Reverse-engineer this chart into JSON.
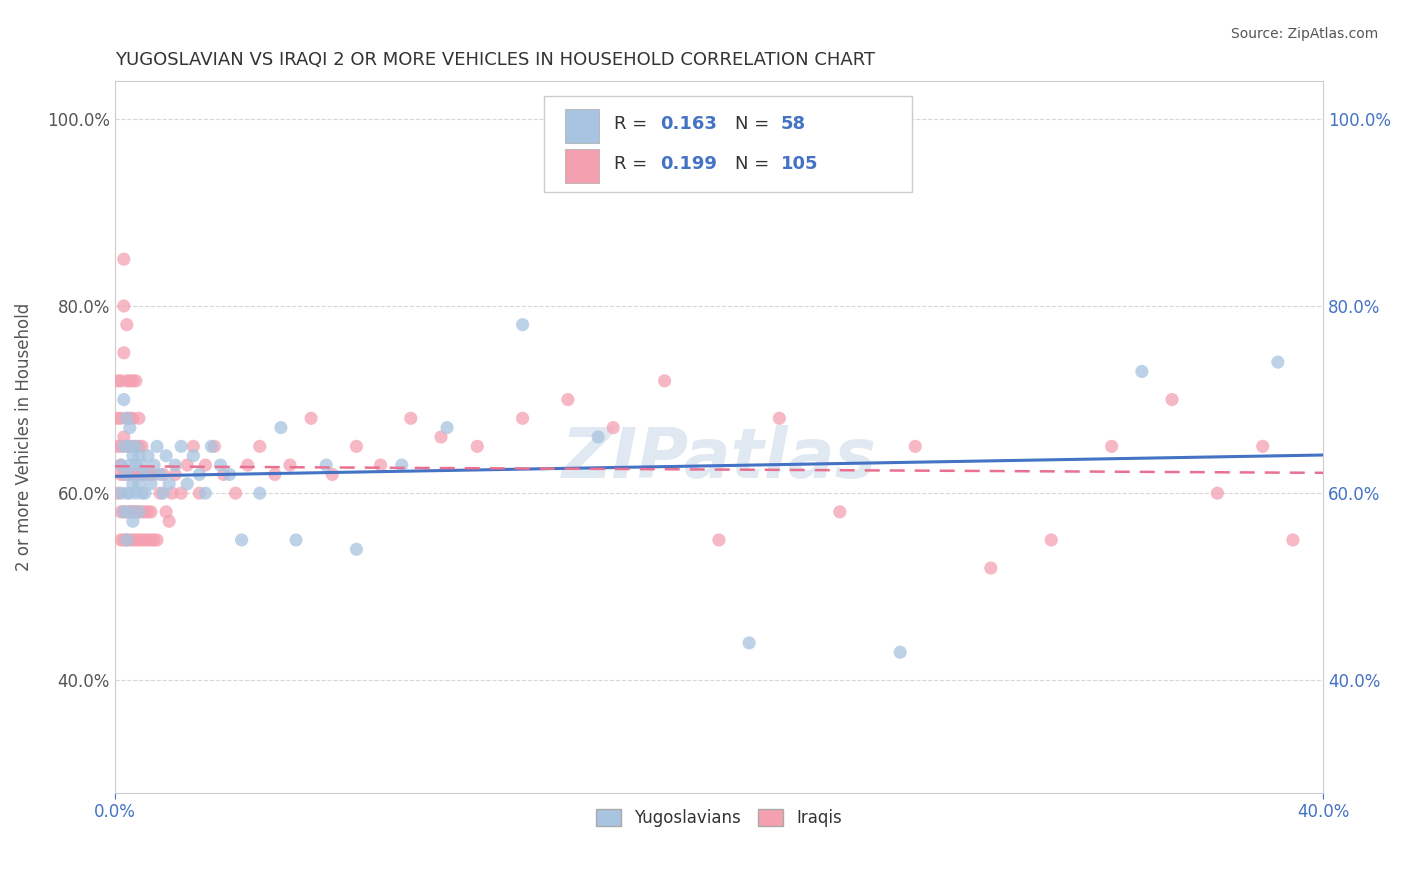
{
  "title": "YUGOSLAVIAN VS IRAQI 2 OR MORE VEHICLES IN HOUSEHOLD CORRELATION CHART",
  "source": "Source: ZipAtlas.com",
  "ylabel": "2 or more Vehicles in Household",
  "xlim": [
    0.0,
    0.4
  ],
  "ylim": [
    0.28,
    1.04
  ],
  "xticks": [
    0.0,
    0.4
  ],
  "xticklabels": [
    "0.0%",
    "40.0%"
  ],
  "yticks": [
    0.4,
    0.6,
    0.8,
    1.0
  ],
  "yticklabels": [
    "40.0%",
    "60.0%",
    "80.0%",
    "100.0%"
  ],
  "r_yugoslavian": 0.163,
  "n_yugoslavian": 58,
  "r_iraqi": 0.199,
  "n_iraqi": 105,
  "color_yugoslavian": "#a8c4e0",
  "color_iraqi": "#f4a0b0",
  "line_color_yugoslavian": "#4472c4",
  "line_color_iraqi": "#e87090",
  "watermark": "ZIPatlas",
  "background_color": "#ffffff",
  "yugoslavian_x": [
    0.002,
    0.002,
    0.003,
    0.003,
    0.003,
    0.004,
    0.004,
    0.004,
    0.004,
    0.005,
    0.005,
    0.005,
    0.005,
    0.005,
    0.006,
    0.006,
    0.006,
    0.007,
    0.007,
    0.007,
    0.008,
    0.008,
    0.008,
    0.009,
    0.009,
    0.01,
    0.01,
    0.011,
    0.012,
    0.013,
    0.014,
    0.015,
    0.016,
    0.017,
    0.018,
    0.02,
    0.022,
    0.024,
    0.026,
    0.028,
    0.03,
    0.032,
    0.035,
    0.038,
    0.042,
    0.048,
    0.055,
    0.06,
    0.07,
    0.08,
    0.095,
    0.11,
    0.135,
    0.16,
    0.21,
    0.26,
    0.34,
    0.385
  ],
  "yugoslavian_y": [
    0.63,
    0.6,
    0.58,
    0.65,
    0.7,
    0.6,
    0.62,
    0.68,
    0.55,
    0.6,
    0.63,
    0.65,
    0.58,
    0.67,
    0.57,
    0.61,
    0.64,
    0.6,
    0.63,
    0.65,
    0.58,
    0.61,
    0.64,
    0.6,
    0.63,
    0.62,
    0.6,
    0.64,
    0.61,
    0.63,
    0.65,
    0.62,
    0.6,
    0.64,
    0.61,
    0.63,
    0.65,
    0.61,
    0.64,
    0.62,
    0.6,
    0.65,
    0.63,
    0.62,
    0.55,
    0.6,
    0.67,
    0.55,
    0.63,
    0.54,
    0.63,
    0.67,
    0.78,
    0.66,
    0.44,
    0.43,
    0.73,
    0.74
  ],
  "iraqi_x": [
    0.001,
    0.001,
    0.001,
    0.001,
    0.002,
    0.002,
    0.002,
    0.002,
    0.002,
    0.002,
    0.002,
    0.003,
    0.003,
    0.003,
    0.003,
    0.003,
    0.003,
    0.003,
    0.004,
    0.004,
    0.004,
    0.004,
    0.004,
    0.004,
    0.004,
    0.005,
    0.005,
    0.005,
    0.005,
    0.005,
    0.005,
    0.005,
    0.006,
    0.006,
    0.006,
    0.006,
    0.006,
    0.006,
    0.007,
    0.007,
    0.007,
    0.007,
    0.007,
    0.007,
    0.008,
    0.008,
    0.008,
    0.008,
    0.008,
    0.009,
    0.009,
    0.009,
    0.009,
    0.01,
    0.01,
    0.01,
    0.011,
    0.011,
    0.011,
    0.012,
    0.012,
    0.012,
    0.013,
    0.013,
    0.014,
    0.015,
    0.016,
    0.017,
    0.018,
    0.019,
    0.02,
    0.022,
    0.024,
    0.026,
    0.028,
    0.03,
    0.033,
    0.036,
    0.04,
    0.044,
    0.048,
    0.053,
    0.058,
    0.065,
    0.072,
    0.08,
    0.088,
    0.098,
    0.108,
    0.12,
    0.135,
    0.15,
    0.165,
    0.182,
    0.2,
    0.22,
    0.24,
    0.265,
    0.29,
    0.31,
    0.33,
    0.35,
    0.365,
    0.38,
    0.39
  ],
  "iraqi_y": [
    0.65,
    0.68,
    0.72,
    0.6,
    0.63,
    0.55,
    0.58,
    0.62,
    0.65,
    0.68,
    0.72,
    0.58,
    0.62,
    0.66,
    0.75,
    0.8,
    0.85,
    0.55,
    0.55,
    0.58,
    0.62,
    0.65,
    0.68,
    0.72,
    0.78,
    0.55,
    0.58,
    0.62,
    0.65,
    0.68,
    0.72,
    0.58,
    0.55,
    0.58,
    0.62,
    0.65,
    0.68,
    0.72,
    0.55,
    0.58,
    0.62,
    0.65,
    0.58,
    0.72,
    0.55,
    0.58,
    0.62,
    0.65,
    0.68,
    0.55,
    0.58,
    0.62,
    0.65,
    0.55,
    0.58,
    0.62,
    0.55,
    0.58,
    0.62,
    0.55,
    0.58,
    0.62,
    0.55,
    0.62,
    0.55,
    0.6,
    0.62,
    0.58,
    0.57,
    0.6,
    0.62,
    0.6,
    0.63,
    0.65,
    0.6,
    0.63,
    0.65,
    0.62,
    0.6,
    0.63,
    0.65,
    0.62,
    0.63,
    0.68,
    0.62,
    0.65,
    0.63,
    0.68,
    0.66,
    0.65,
    0.68,
    0.7,
    0.67,
    0.72,
    0.55,
    0.68,
    0.58,
    0.65,
    0.52,
    0.55,
    0.65,
    0.7,
    0.6,
    0.65,
    0.55
  ]
}
